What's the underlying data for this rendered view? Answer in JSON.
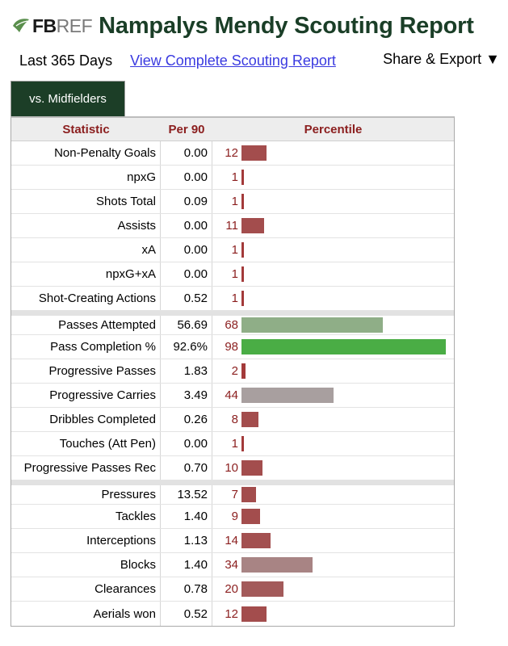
{
  "logo": {
    "fb": "FB",
    "ref": "REF"
  },
  "title": "Nampalys Mendy Scouting Report",
  "subnav": {
    "period": "Last 365 Days",
    "full_link": "View Complete Scouting Report",
    "share": "Share & Export ▼"
  },
  "tab": "vs. Midfielders",
  "table": {
    "headers": {
      "stat": "Statistic",
      "per90": "Per 90",
      "percentile": "Percentile"
    },
    "rows": [
      {
        "stat": "Non-Penalty Goals",
        "per90": "0.00",
        "pct": "12",
        "pct_value": 12,
        "color": "#a34d4d",
        "group": 1
      },
      {
        "stat": "npxG",
        "per90": "0.00",
        "pct": "1",
        "pct_value": 1,
        "color": "#a33a3a",
        "group": 1
      },
      {
        "stat": "Shots Total",
        "per90": "0.09",
        "pct": "1",
        "pct_value": 1,
        "color": "#a33a3a",
        "group": 1
      },
      {
        "stat": "Assists",
        "per90": "0.00",
        "pct": "11",
        "pct_value": 11,
        "color": "#a34d4d",
        "group": 1
      },
      {
        "stat": "xA",
        "per90": "0.00",
        "pct": "1",
        "pct_value": 1,
        "color": "#a33a3a",
        "group": 1
      },
      {
        "stat": "npxG+xA",
        "per90": "0.00",
        "pct": "1",
        "pct_value": 1,
        "color": "#a33a3a",
        "group": 1
      },
      {
        "stat": "Shot-Creating Actions",
        "per90": "0.52",
        "pct": "1",
        "pct_value": 1,
        "color": "#a33a3a",
        "group": 1
      },
      {
        "stat": "Passes Attempted",
        "per90": "56.69",
        "pct": "68",
        "pct_value": 68,
        "color": "#8fae87",
        "group": 2
      },
      {
        "stat": "Pass Completion %",
        "per90": "92.6%",
        "pct": "98",
        "pct_value": 98,
        "color": "#4aad45",
        "group": 2
      },
      {
        "stat": "Progressive Passes",
        "per90": "1.83",
        "pct": "2",
        "pct_value": 2,
        "color": "#a33a3a",
        "group": 2
      },
      {
        "stat": "Progressive Carries",
        "per90": "3.49",
        "pct": "44",
        "pct_value": 44,
        "color": "#a89f9f",
        "group": 2
      },
      {
        "stat": "Dribbles Completed",
        "per90": "0.26",
        "pct": "8",
        "pct_value": 8,
        "color": "#a34d4d",
        "group": 2
      },
      {
        "stat": "Touches (Att Pen)",
        "per90": "0.00",
        "pct": "1",
        "pct_value": 1,
        "color": "#a33a3a",
        "group": 2
      },
      {
        "stat": "Progressive Passes Rec",
        "per90": "0.70",
        "pct": "10",
        "pct_value": 10,
        "color": "#a34d4d",
        "group": 2
      },
      {
        "stat": "Pressures",
        "per90": "13.52",
        "pct": "7",
        "pct_value": 7,
        "color": "#a34d4d",
        "group": 3
      },
      {
        "stat": "Tackles",
        "per90": "1.40",
        "pct": "9",
        "pct_value": 9,
        "color": "#a34d4d",
        "group": 3
      },
      {
        "stat": "Interceptions",
        "per90": "1.13",
        "pct": "14",
        "pct_value": 14,
        "color": "#a35050",
        "group": 3
      },
      {
        "stat": "Blocks",
        "per90": "1.40",
        "pct": "34",
        "pct_value": 34,
        "color": "#a88484",
        "group": 3
      },
      {
        "stat": "Clearances",
        "per90": "0.78",
        "pct": "20",
        "pct_value": 20,
        "color": "#a35a5a",
        "group": 3
      },
      {
        "stat": "Aerials won",
        "per90": "0.52",
        "pct": "12",
        "pct_value": 12,
        "color": "#a34d4d",
        "group": 3
      }
    ]
  }
}
